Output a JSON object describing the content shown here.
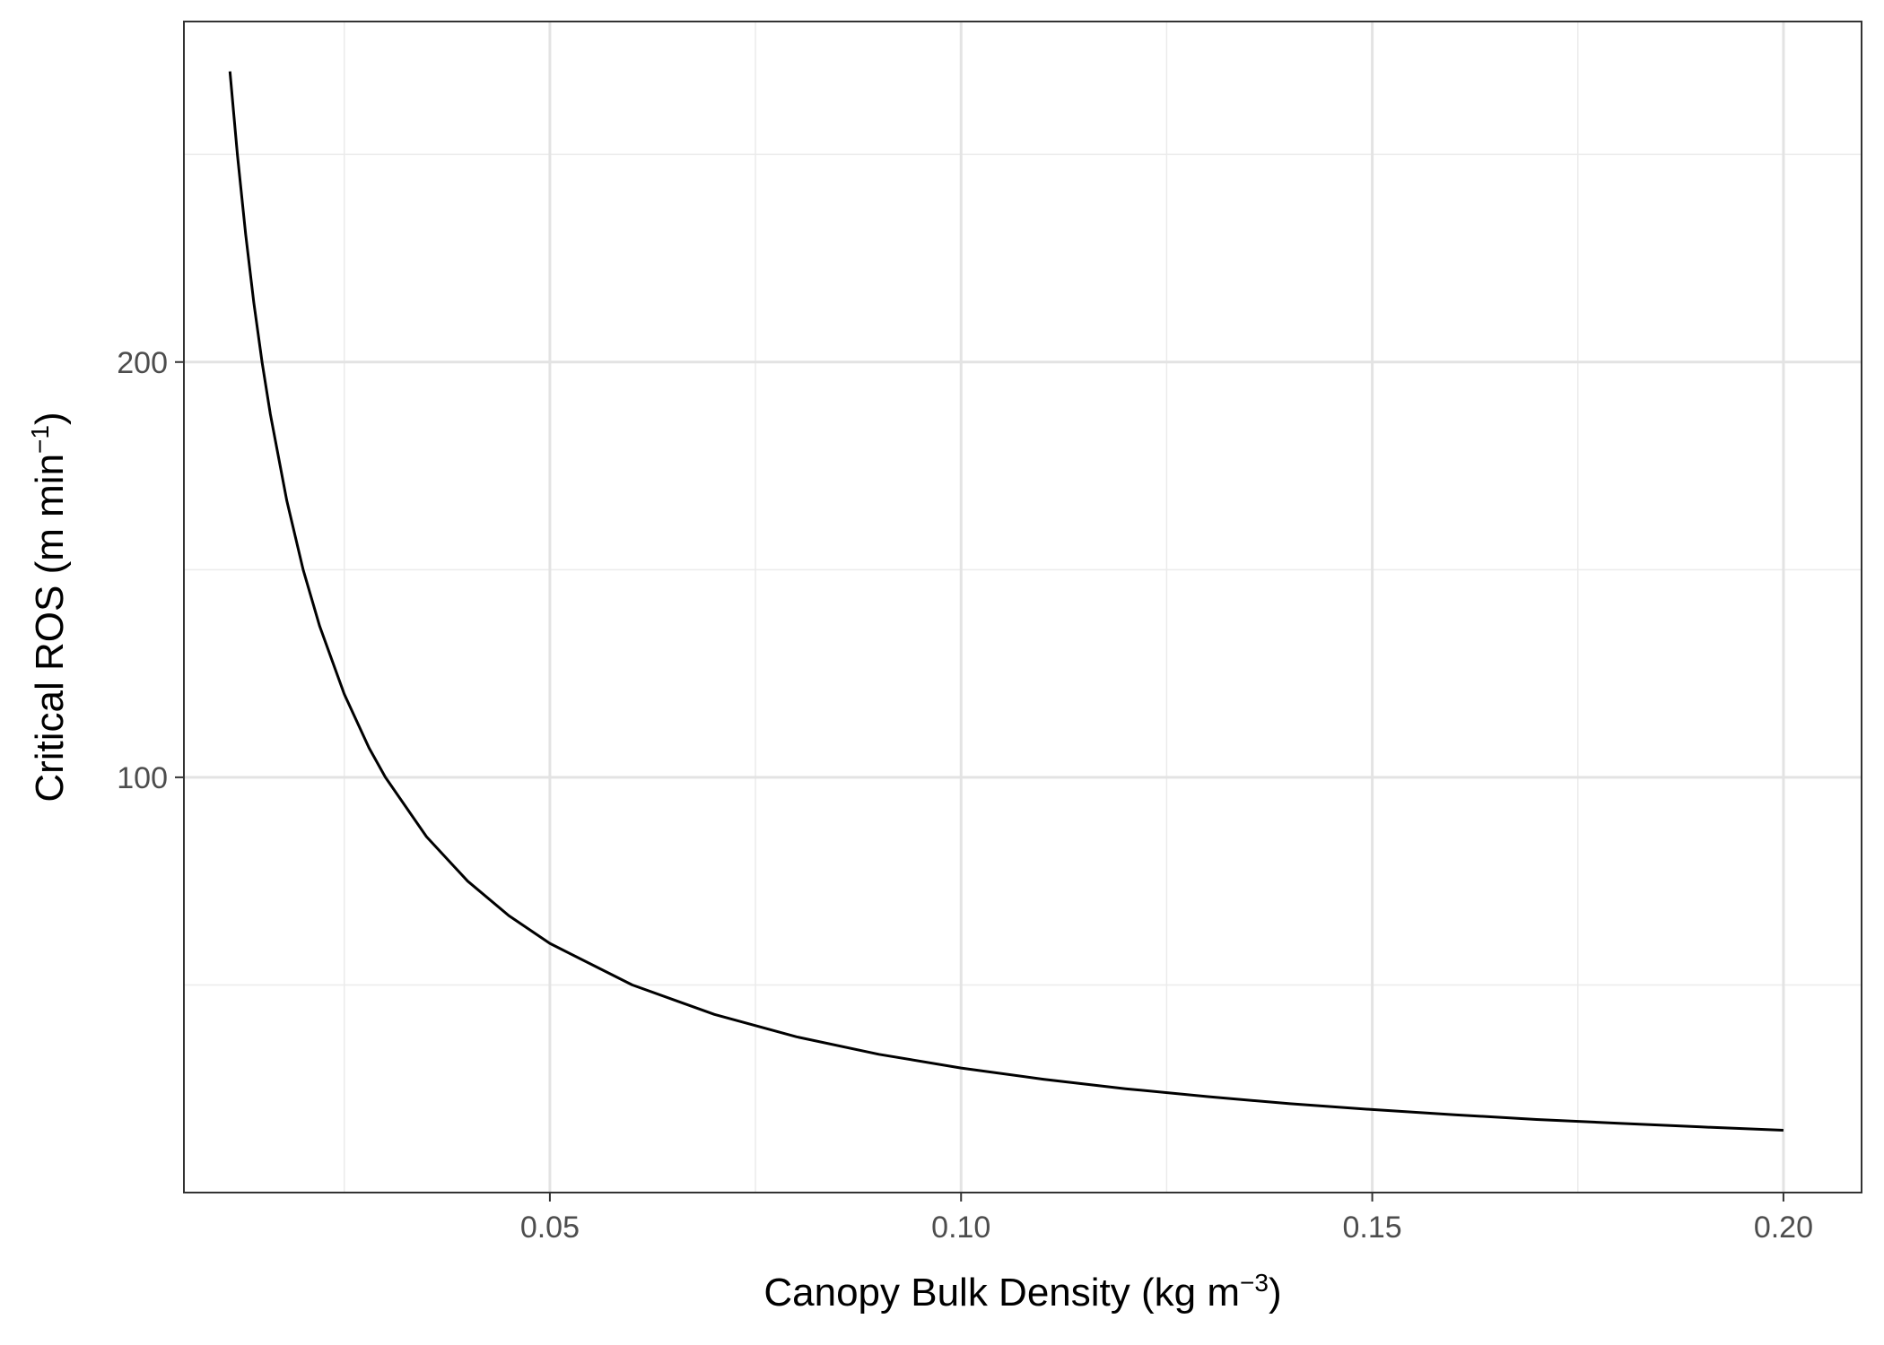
{
  "chart_data": {
    "type": "line",
    "title": "",
    "xlabel": {
      "text": "Canopy Bulk Density",
      "unit_base": "kg m",
      "unit_exp": "−3"
    },
    "ylabel": {
      "text": "Critical ROS",
      "unit_base": "m min",
      "unit_exp": "−1"
    },
    "xlim": [
      0.0055,
      0.2095
    ],
    "ylim": [
      0,
      282
    ],
    "x_ticks": [
      0.05,
      0.1,
      0.15,
      0.2
    ],
    "x_tick_labels": [
      "0.05",
      "0.10",
      "0.15",
      "0.20"
    ],
    "x_minor_ticks": [
      0.025,
      0.075,
      0.125,
      0.175
    ],
    "y_ticks": [
      100,
      200
    ],
    "y_tick_labels": [
      "100",
      "200"
    ],
    "y_minor_ticks": [
      50,
      150,
      250
    ],
    "grid": true,
    "series": [
      {
        "color": "#000000",
        "x": [
          0.0111,
          0.012,
          0.013,
          0.014,
          0.015,
          0.016,
          0.018,
          0.02,
          0.022,
          0.025,
          0.028,
          0.03,
          0.035,
          0.04,
          0.045,
          0.05,
          0.06,
          0.07,
          0.08,
          0.09,
          0.1,
          0.11,
          0.12,
          0.13,
          0.14,
          0.15,
          0.16,
          0.17,
          0.18,
          0.19,
          0.2
        ],
        "y": [
          270,
          250,
          230.8,
          214.3,
          200,
          187.5,
          166.7,
          150,
          136.4,
          120,
          107.1,
          100,
          85.7,
          75,
          66.7,
          60,
          50,
          42.9,
          37.5,
          33.3,
          30,
          27.3,
          25,
          23.1,
          21.4,
          20,
          18.75,
          17.6,
          16.7,
          15.8,
          15
        ]
      }
    ]
  }
}
